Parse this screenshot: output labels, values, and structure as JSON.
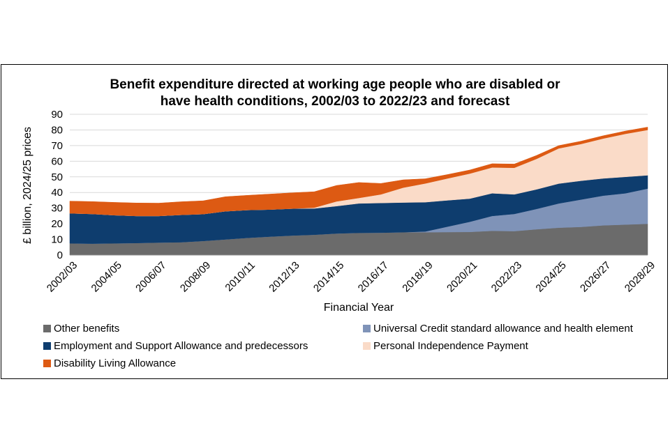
{
  "chart_data": {
    "type": "area",
    "stacked": true,
    "title_lines": [
      "Benefit expenditure directed at working age people who are disabled or",
      "have health conditions, 2002/03 to 2022/23 and forecast"
    ],
    "xlabel": "Financial Year",
    "ylabel": "£ billion, 2024/25 prices",
    "ylim": [
      0,
      90
    ],
    "yticks": [
      0,
      10,
      20,
      30,
      40,
      50,
      60,
      70,
      80,
      90
    ],
    "grid": true,
    "categories": [
      "2002/03",
      "2003/04",
      "2004/05",
      "2005/06",
      "2006/07",
      "2007/08",
      "2008/09",
      "2009/10",
      "2010/11",
      "2011/12",
      "2012/13",
      "2013/14",
      "2014/15",
      "2015/16",
      "2016/17",
      "2017/18",
      "2018/19",
      "2019/20",
      "2020/21",
      "2021/22",
      "2022/23",
      "2023/24",
      "2024/25",
      "2025/26",
      "2026/27",
      "2027/28",
      "2028/29"
    ],
    "tick_labels": [
      "2002/03",
      "2004/05",
      "2006/07",
      "2008/09",
      "2010/11",
      "2012/13",
      "2014/15",
      "2016/17",
      "2018/19",
      "2020/21",
      "2022/23",
      "2024/25",
      "2026/27",
      "2028/29"
    ],
    "series": [
      {
        "name": "Other benefits",
        "color": "#6b6b6b",
        "values": [
          7.5,
          7.3,
          7.5,
          7.7,
          8.0,
          8.2,
          9.0,
          10.0,
          11.0,
          11.8,
          12.5,
          13.0,
          13.8,
          14.2,
          14.3,
          14.6,
          14.6,
          14.7,
          14.8,
          15.5,
          15.3,
          16.5,
          17.5,
          18.0,
          19.0,
          19.5,
          20.0
        ]
      },
      {
        "name": "Universal Credit standard allowance and health element",
        "color": "#7f93b8",
        "values": [
          0,
          0,
          0,
          0,
          0,
          0,
          0,
          0,
          0,
          0,
          0,
          0,
          0,
          0,
          0,
          0,
          0.5,
          3.5,
          6.5,
          9.5,
          11.0,
          13.0,
          15.5,
          17.5,
          19.0,
          20.0,
          22.5
        ]
      },
      {
        "name": "Employment and Support Allowance and predecessors",
        "color": "#0e3d6e",
        "values": [
          19.2,
          19.0,
          18.0,
          17.3,
          17.0,
          17.5,
          17.2,
          18.0,
          17.8,
          17.3,
          17.2,
          16.8,
          17.5,
          18.8,
          19.0,
          19.0,
          18.7,
          16.8,
          14.8,
          14.5,
          12.5,
          12.5,
          12.7,
          12.0,
          11.0,
          10.5,
          8.5
        ]
      },
      {
        "name": "Personal Independence Payment",
        "color": "#fadbc8",
        "values": [
          0,
          0,
          0,
          0,
          0,
          0,
          0,
          0,
          0,
          0,
          0,
          0.5,
          3.0,
          3.5,
          5.5,
          9.5,
          12.0,
          14.0,
          16.0,
          16.5,
          17.0,
          19.5,
          22.5,
          23.5,
          25.5,
          27.5,
          29.0
        ]
      },
      {
        "name": "Disability Living Allowance",
        "color": "#dd5a13",
        "values": [
          7.8,
          7.9,
          8.2,
          8.3,
          8.2,
          8.4,
          8.5,
          9.3,
          9.4,
          9.9,
          10.1,
          10.2,
          10.2,
          9.9,
          7.0,
          5.0,
          3.0,
          2.5,
          2.3,
          2.4,
          2.4,
          2.2,
          1.8,
          1.8,
          1.8,
          1.8,
          1.8
        ]
      }
    ],
    "legend": [
      "Other benefits",
      "Universal Credit standard allowance and health element",
      "Employment and Support Allowance and predecessors",
      "Personal Independence Payment",
      "Disability Living Allowance"
    ]
  }
}
